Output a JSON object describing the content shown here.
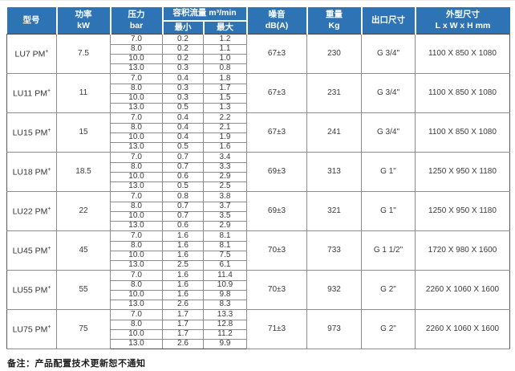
{
  "table": {
    "headers": {
      "model": "型号",
      "power": "功率\nkW",
      "pressure": "压力\nbar",
      "flow": "容积流量  m³/min",
      "flow_min": "最小",
      "flow_max": "最大",
      "noise": "噪音\ndB(A)",
      "weight": "重量\nKg",
      "outlet": "出口尺寸",
      "dimensions": "外型尺寸\nL x W x H mm"
    },
    "models": [
      {
        "name": "LU7 PM",
        "sup": "+",
        "power": "7.5",
        "noise": "67±3",
        "weight": "230",
        "outlet": "G 3/4\"",
        "dimensions": "1100 X 850 X 1080",
        "rows": [
          {
            "pressure": "7.0",
            "min": "0.2",
            "max": "1.2"
          },
          {
            "pressure": "8.0",
            "min": "0.2",
            "max": "1.1"
          },
          {
            "pressure": "10.0",
            "min": "0.2",
            "max": "1.0"
          },
          {
            "pressure": "13.0",
            "min": "0.3",
            "max": "0.8"
          }
        ]
      },
      {
        "name": "LU11 PM",
        "sup": "+",
        "power": "11",
        "noise": "67±3",
        "weight": "231",
        "outlet": "G 3/4\"",
        "dimensions": "1100 X 850 X 1080",
        "rows": [
          {
            "pressure": "7.0",
            "min": "0.4",
            "max": "1.8"
          },
          {
            "pressure": "8.0",
            "min": "0.3",
            "max": "1.7"
          },
          {
            "pressure": "10.0",
            "min": "0.3",
            "max": "1.5"
          },
          {
            "pressure": "13.0",
            "min": "0.5",
            "max": "1.3"
          }
        ]
      },
      {
        "name": "LU15 PM",
        "sup": "+",
        "power": "15",
        "noise": "67±3",
        "weight": "241",
        "outlet": "G 3/4\"",
        "dimensions": "1100 X 850 X 1080",
        "rows": [
          {
            "pressure": "7.0",
            "min": "0.4",
            "max": "2.2"
          },
          {
            "pressure": "8.0",
            "min": "0.4",
            "max": "2.1"
          },
          {
            "pressure": "10.0",
            "min": "0.4",
            "max": "1.9"
          },
          {
            "pressure": "13.0",
            "min": "0.5",
            "max": "1.6"
          }
        ]
      },
      {
        "name": "LU18 PM",
        "sup": "+",
        "power": "18.5",
        "noise": "69±3",
        "weight": "313",
        "outlet": "G 1\"",
        "dimensions": "1250 X 950 X 1180",
        "rows": [
          {
            "pressure": "7.0",
            "min": "0.7",
            "max": "3.4"
          },
          {
            "pressure": "8.0",
            "min": "0.7",
            "max": "3.3"
          },
          {
            "pressure": "10.0",
            "min": "0.6",
            "max": "2.9"
          },
          {
            "pressure": "13.0",
            "min": "0.5",
            "max": "2.5"
          }
        ]
      },
      {
        "name": "LU22 PM",
        "sup": "+",
        "power": "22",
        "noise": "69±3",
        "weight": "321",
        "outlet": "G 1\"",
        "dimensions": "1250 X 950 X 1180",
        "rows": [
          {
            "pressure": "7.0",
            "min": "0.8",
            "max": "3.8"
          },
          {
            "pressure": "8.0",
            "min": "0.7",
            "max": "3.7"
          },
          {
            "pressure": "10.0",
            "min": "0.7",
            "max": "3.5"
          },
          {
            "pressure": "13.0",
            "min": "0.6",
            "max": "2.9"
          }
        ]
      },
      {
        "name": "LU45 PM",
        "sup": "+",
        "power": "45",
        "noise": "70±3",
        "weight": "733",
        "outlet": "G 1 1/2\"",
        "dimensions": "1720 X 980 X 1600",
        "rows": [
          {
            "pressure": "7.0",
            "min": "1.6",
            "max": "8.1"
          },
          {
            "pressure": "8.0",
            "min": "1.6",
            "max": "8.1"
          },
          {
            "pressure": "10.0",
            "min": "1.6",
            "max": "7.5"
          },
          {
            "pressure": "13.0",
            "min": "2.5",
            "max": "6.1"
          }
        ]
      },
      {
        "name": "LU55 PM",
        "sup": "+",
        "power": "55",
        "noise": "70±3",
        "weight": "932",
        "outlet": "G 2\"",
        "dimensions": "2260 X 1060 X 1600",
        "rows": [
          {
            "pressure": "7.0",
            "min": "1.6",
            "max": "11.4"
          },
          {
            "pressure": "8.0",
            "min": "1.6",
            "max": "10.9"
          },
          {
            "pressure": "10.0",
            "min": "1.6",
            "max": "9.8"
          },
          {
            "pressure": "13.0",
            "min": "2.6",
            "max": "8.3"
          }
        ]
      },
      {
        "name": "LU75 PM",
        "sup": "+",
        "power": "75",
        "noise": "71±3",
        "weight": "973",
        "outlet": "G 2\"",
        "dimensions": "2260 X 1060 X 1600",
        "rows": [
          {
            "pressure": "7.0",
            "min": "1.7",
            "max": "13.3"
          },
          {
            "pressure": "8.0",
            "min": "1.7",
            "max": "12.8"
          },
          {
            "pressure": "10.0",
            "min": "1.7",
            "max": "11.2"
          },
          {
            "pressure": "13.0",
            "min": "2.6",
            "max": "9.9"
          }
        ]
      }
    ]
  },
  "footer": {
    "note": "备注：产品配置技术更新恕不通知"
  },
  "colors": {
    "header_blue": "#2e74b5",
    "grid_dark": "#474747",
    "grid_light": "#8c8c8c"
  }
}
